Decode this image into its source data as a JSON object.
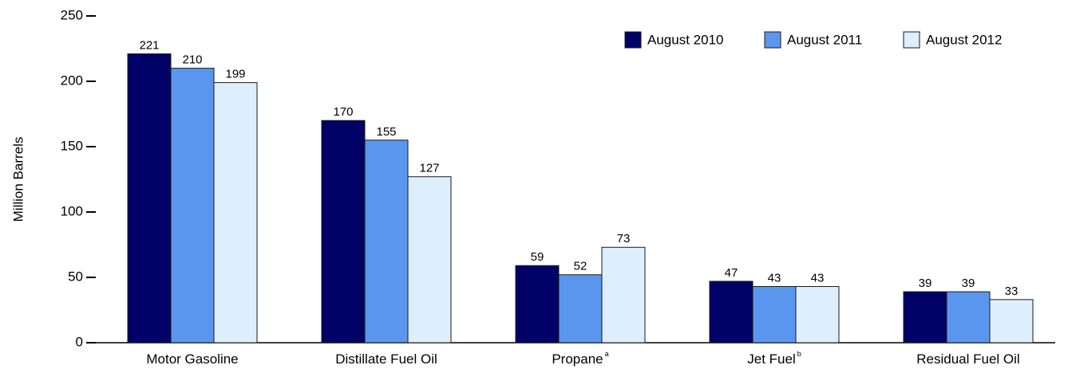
{
  "chart_data": {
    "type": "bar",
    "y_label": "Million Barrels",
    "categories": [
      "Motor Gasoline",
      "Distillate Fuel Oil",
      "Propane",
      "Jet Fuel",
      "Residual Fuel Oil"
    ],
    "category_footnotes": {
      "2": "a",
      "3": "b"
    },
    "series": [
      {
        "name": "August 2010",
        "color": "#000066",
        "values": [
          221,
          170,
          59,
          47,
          39
        ]
      },
      {
        "name": "August 2011",
        "color": "#5b96ee",
        "values": [
          210,
          155,
          52,
          43,
          39
        ]
      },
      {
        "name": "August 2012",
        "color": "#ddeefc",
        "values": [
          199,
          127,
          73,
          43,
          33
        ]
      }
    ],
    "ylim": [
      0,
      250
    ],
    "yticks": [
      0,
      50,
      100,
      150,
      200,
      250
    ],
    "legend": "top-right"
  }
}
